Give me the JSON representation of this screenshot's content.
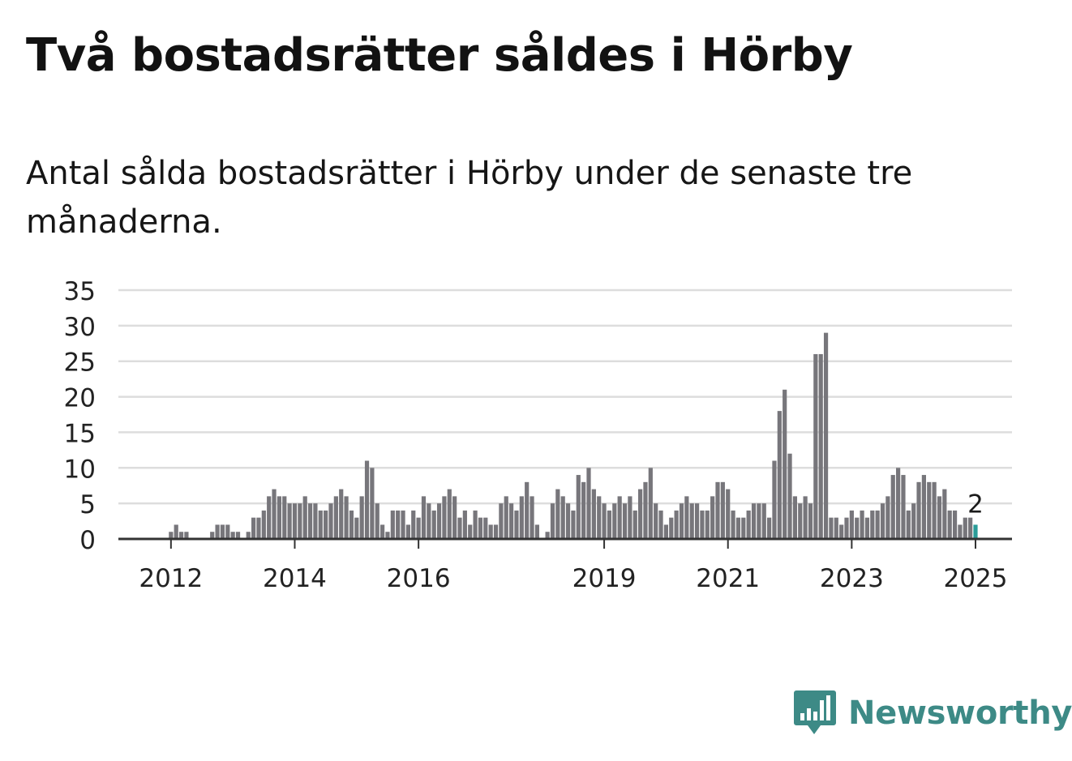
{
  "title": "Två bostadsrätter såldes i Hörby",
  "subtitle": "Antal sålda bostadsrätter i Hörby under de senaste tre månaderna.",
  "brand": {
    "name": "Newsworthy",
    "icon": "bar-chart-speech-bubble-icon",
    "color": "#3d8a86"
  },
  "colors": {
    "bar": "#77767b",
    "highlight": "#2a9c98",
    "grid": "#dddddd",
    "axis": "#333333"
  },
  "chart_data": {
    "type": "bar",
    "title": "Två bostadsrätter såldes i Hörby",
    "x_start": "2011-04",
    "x_end": "2025-01",
    "x_ticks": [
      "2012",
      "2014",
      "2016",
      "2019",
      "2021",
      "2023",
      "2025"
    ],
    "ylim": [
      0,
      35
    ],
    "y_ticks": [
      "0",
      "5",
      "10",
      "15",
      "20",
      "25",
      "30",
      "35"
    ],
    "grid": true,
    "values": [
      0,
      0,
      0,
      0,
      0,
      0,
      0,
      0,
      0,
      1,
      2,
      1,
      1,
      0,
      0,
      0,
      0,
      1,
      2,
      2,
      2,
      1,
      1,
      0,
      1,
      3,
      3,
      4,
      6,
      7,
      6,
      6,
      5,
      5,
      5,
      6,
      5,
      5,
      4,
      4,
      5,
      6,
      7,
      6,
      4,
      3,
      6,
      11,
      10,
      5,
      2,
      1,
      4,
      4,
      4,
      2,
      4,
      3,
      6,
      5,
      4,
      5,
      6,
      7,
      6,
      3,
      4,
      2,
      4,
      3,
      3,
      2,
      2,
      5,
      6,
      5,
      4,
      6,
      8,
      6,
      2,
      0,
      1,
      5,
      7,
      6,
      5,
      4,
      9,
      8,
      10,
      7,
      6,
      5,
      4,
      5,
      6,
      5,
      6,
      4,
      7,
      8,
      10,
      5,
      4,
      2,
      3,
      4,
      5,
      6,
      5,
      5,
      4,
      4,
      6,
      8,
      8,
      7,
      4,
      3,
      3,
      4,
      5,
      5,
      5,
      3,
      11,
      18,
      21,
      12,
      6,
      5,
      6,
      5,
      26,
      26,
      29,
      3,
      3,
      2,
      3,
      4,
      3,
      4,
      3,
      4,
      4,
      5,
      6,
      9,
      10,
      9,
      4,
      5,
      8,
      9,
      8,
      8,
      6,
      7,
      4,
      4,
      2,
      3,
      3,
      2
    ],
    "highlight_last": true,
    "last_label": "2"
  }
}
